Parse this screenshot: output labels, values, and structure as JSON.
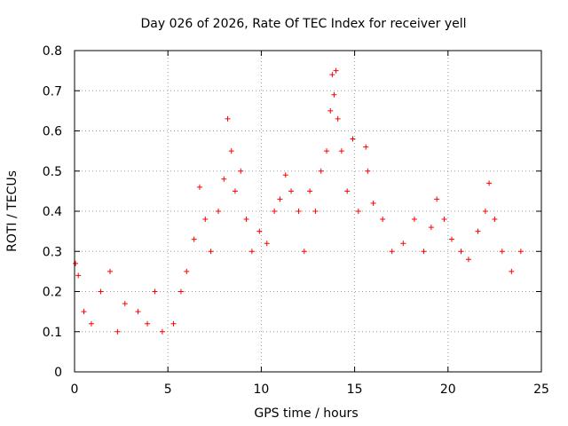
{
  "chart_data": {
    "type": "scatter",
    "title": "Day 026 of 2026, Rate Of TEC Index for receiver yell",
    "xlabel": "GPS time / hours",
    "ylabel": "ROTI / TECUs",
    "xlim": [
      0,
      25
    ],
    "ylim": [
      0,
      0.8
    ],
    "xticks": [
      0,
      5,
      10,
      15,
      20,
      25
    ],
    "yticks": [
      0,
      0.1,
      0.2,
      0.3,
      0.4,
      0.5,
      0.6,
      0.7,
      0.8
    ],
    "xtick_labels": [
      "0",
      "5",
      "10",
      "15",
      "20",
      "25"
    ],
    "ytick_labels": [
      "0",
      "0.1",
      "0.2",
      "0.3",
      "0.4",
      "0.5",
      "0.6",
      "0.7",
      "0.8"
    ],
    "grid": true,
    "marker": "plus",
    "color": "#ff0000",
    "series": [
      {
        "name": "ROTI",
        "points": [
          [
            0.05,
            0.27
          ],
          [
            0.2,
            0.24
          ],
          [
            0.5,
            0.15
          ],
          [
            0.9,
            0.12
          ],
          [
            1.4,
            0.2
          ],
          [
            1.9,
            0.25
          ],
          [
            2.3,
            0.1
          ],
          [
            2.7,
            0.17
          ],
          [
            3.4,
            0.15
          ],
          [
            3.9,
            0.12
          ],
          [
            4.3,
            0.2
          ],
          [
            4.7,
            0.1
          ],
          [
            5.3,
            0.12
          ],
          [
            5.7,
            0.2
          ],
          [
            6.0,
            0.25
          ],
          [
            6.4,
            0.33
          ],
          [
            6.7,
            0.46
          ],
          [
            7.0,
            0.38
          ],
          [
            7.3,
            0.3
          ],
          [
            7.7,
            0.4
          ],
          [
            8.0,
            0.48
          ],
          [
            8.2,
            0.63
          ],
          [
            8.4,
            0.55
          ],
          [
            8.6,
            0.45
          ],
          [
            8.9,
            0.5
          ],
          [
            9.2,
            0.38
          ],
          [
            9.5,
            0.3
          ],
          [
            9.9,
            0.35
          ],
          [
            10.3,
            0.32
          ],
          [
            10.7,
            0.4
          ],
          [
            11.0,
            0.43
          ],
          [
            11.3,
            0.49
          ],
          [
            11.6,
            0.45
          ],
          [
            12.0,
            0.4
          ],
          [
            12.3,
            0.3
          ],
          [
            12.6,
            0.45
          ],
          [
            12.9,
            0.4
          ],
          [
            13.2,
            0.5
          ],
          [
            13.5,
            0.55
          ],
          [
            13.7,
            0.65
          ],
          [
            13.8,
            0.74
          ],
          [
            13.9,
            0.69
          ],
          [
            14.0,
            0.75
          ],
          [
            14.1,
            0.63
          ],
          [
            14.3,
            0.55
          ],
          [
            14.6,
            0.45
          ],
          [
            14.9,
            0.58
          ],
          [
            15.2,
            0.4
          ],
          [
            15.6,
            0.56
          ],
          [
            15.7,
            0.5
          ],
          [
            16.0,
            0.42
          ],
          [
            16.5,
            0.38
          ],
          [
            17.0,
            0.3
          ],
          [
            17.6,
            0.32
          ],
          [
            18.2,
            0.38
          ],
          [
            18.7,
            0.3
          ],
          [
            19.1,
            0.36
          ],
          [
            19.4,
            0.43
          ],
          [
            19.8,
            0.38
          ],
          [
            20.2,
            0.33
          ],
          [
            20.7,
            0.3
          ],
          [
            21.1,
            0.28
          ],
          [
            21.6,
            0.35
          ],
          [
            22.0,
            0.4
          ],
          [
            22.2,
            0.47
          ],
          [
            22.5,
            0.38
          ],
          [
            22.9,
            0.3
          ],
          [
            23.4,
            0.25
          ],
          [
            23.9,
            0.3
          ]
        ]
      }
    ]
  }
}
